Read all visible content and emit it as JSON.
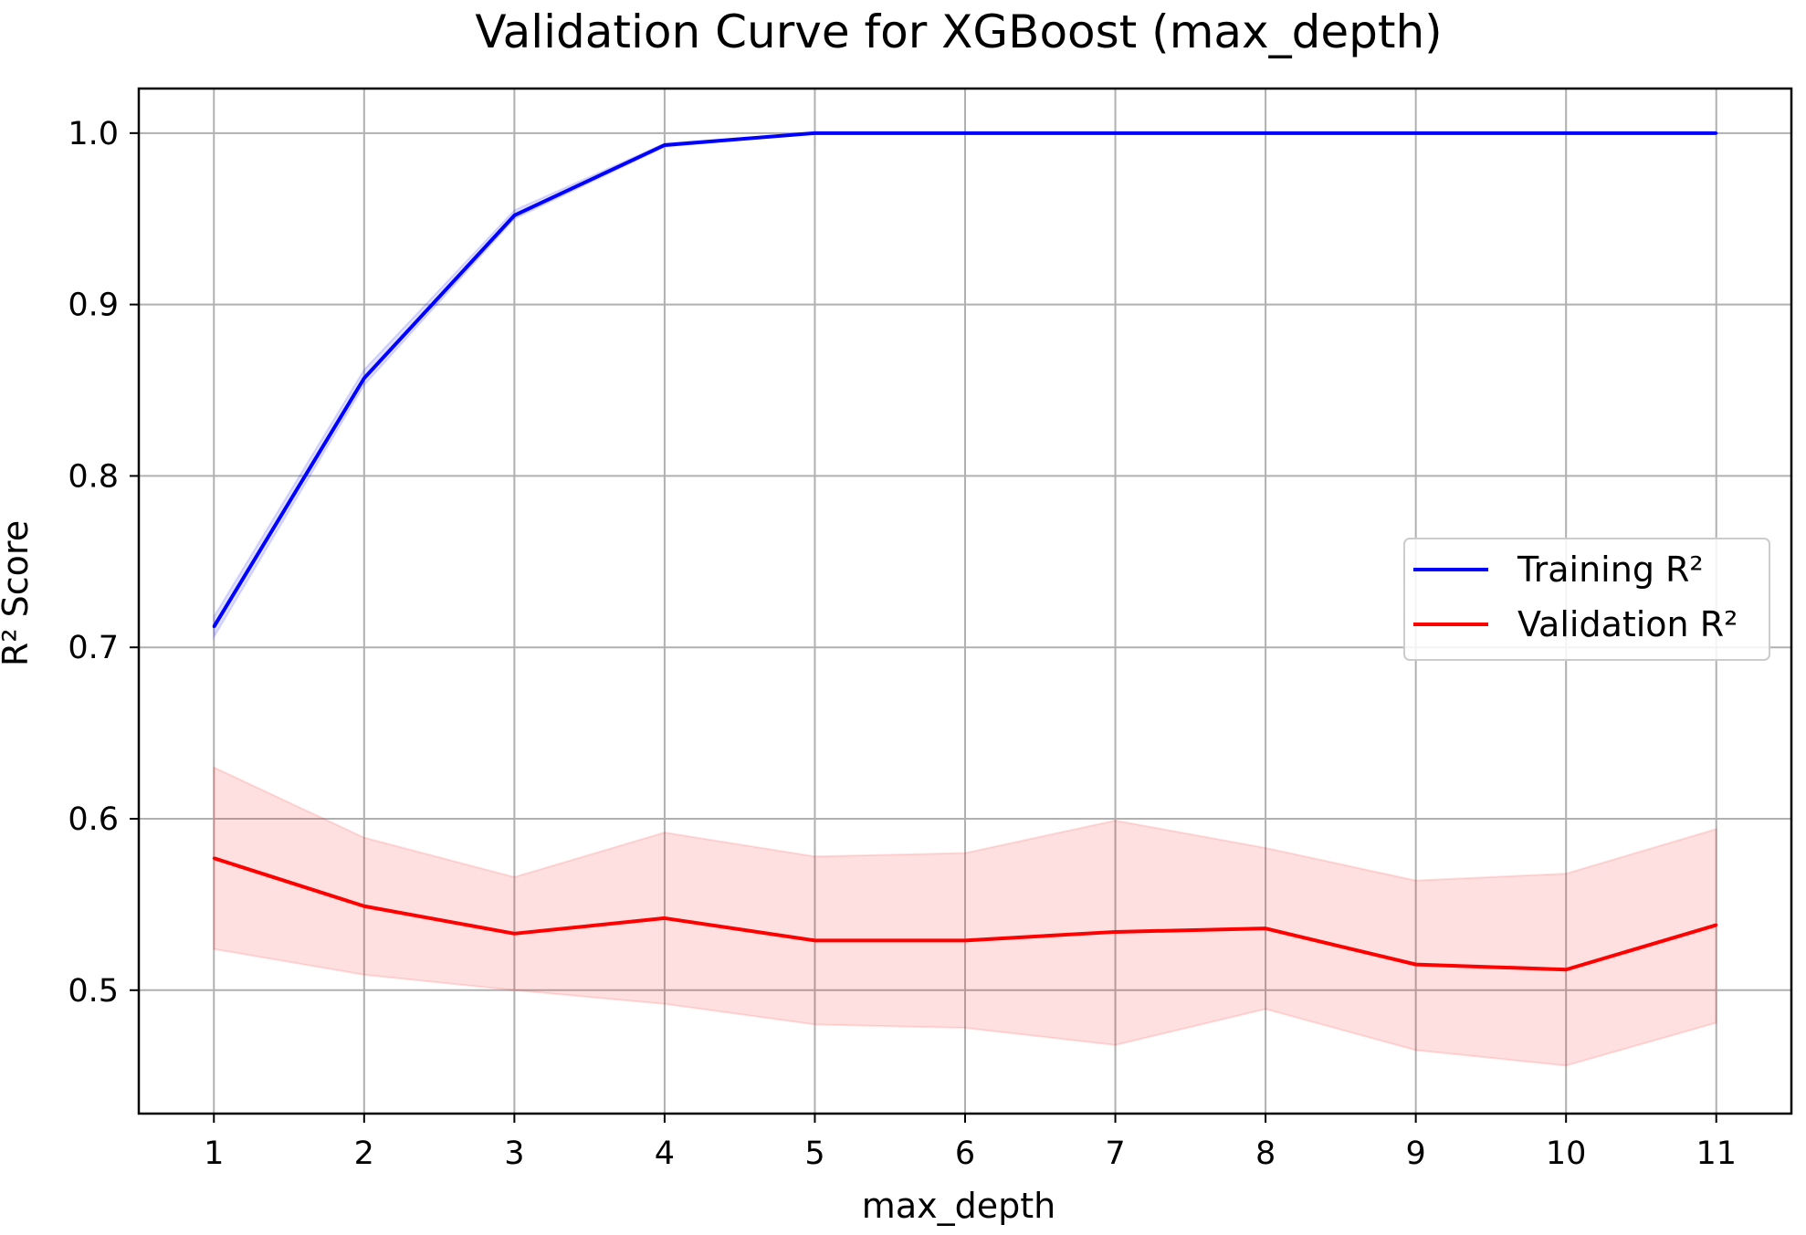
{
  "chart_data": {
    "type": "line",
    "title": "Validation Curve for XGBoost (max_depth)",
    "xlabel": "max_depth",
    "ylabel": "R² Score",
    "x": [
      1,
      2,
      3,
      4,
      5,
      6,
      7,
      8,
      9,
      10,
      11
    ],
    "xlim": [
      0.5,
      11.5
    ],
    "ylim": [
      0.428,
      1.026
    ],
    "yticks": [
      0.5,
      0.6,
      0.7,
      0.8,
      0.9,
      1.0
    ],
    "ytick_labels": [
      "0.5",
      "0.6",
      "0.7",
      "0.8",
      "0.9",
      "1.0"
    ],
    "xtick_labels": [
      "1",
      "2",
      "3",
      "4",
      "5",
      "6",
      "7",
      "8",
      "9",
      "10",
      "11"
    ],
    "grid": true,
    "legend_position": "center-right",
    "series": [
      {
        "name": "Training R²",
        "color": "#0000ff",
        "band_color": "#0000ff",
        "values": [
          0.712,
          0.857,
          0.952,
          0.993,
          1.0,
          1.0,
          1.0,
          1.0,
          1.0,
          1.0,
          1.0
        ],
        "lower": [
          0.706,
          0.853,
          0.95,
          0.992,
          1.0,
          1.0,
          1.0,
          1.0,
          1.0,
          1.0,
          1.0
        ],
        "upper": [
          0.718,
          0.862,
          0.955,
          0.994,
          1.0,
          1.0,
          1.0,
          1.0,
          1.0,
          1.0,
          1.0
        ]
      },
      {
        "name": "Validation R²",
        "color": "#ff0000",
        "band_color": "#ff0000",
        "values": [
          0.577,
          0.549,
          0.533,
          0.542,
          0.529,
          0.529,
          0.534,
          0.536,
          0.515,
          0.512,
          0.538
        ],
        "lower": [
          0.524,
          0.509,
          0.5,
          0.492,
          0.48,
          0.478,
          0.468,
          0.489,
          0.465,
          0.456,
          0.481
        ],
        "upper": [
          0.63,
          0.589,
          0.566,
          0.592,
          0.578,
          0.58,
          0.599,
          0.583,
          0.564,
          0.568,
          0.594
        ]
      }
    ]
  }
}
